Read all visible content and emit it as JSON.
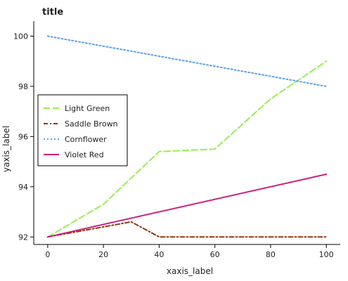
{
  "chart_data": {
    "type": "line",
    "title": "title",
    "xlabel": "xaxis_label",
    "ylabel": "yaxis_label",
    "xlim": [
      -5,
      105
    ],
    "ylim": [
      91.7,
      100.6
    ],
    "x_ticks": [
      0,
      20,
      40,
      60,
      80,
      100
    ],
    "y_ticks": [
      92,
      94,
      96,
      98,
      100
    ],
    "grid": false,
    "legend_position": "center-left",
    "series": [
      {
        "name": "Light Green",
        "color": "#99ee55",
        "dash": "9,4",
        "x": [
          0,
          20,
          40,
          60,
          80,
          100
        ],
        "y": [
          92.0,
          93.3,
          95.4,
          95.5,
          97.5,
          99.0
        ]
      },
      {
        "name": "Saddle Brown",
        "color": "#8b3a10",
        "dash": "6,3,2,3",
        "x": [
          0,
          20,
          30,
          40,
          60,
          80,
          100
        ],
        "y": [
          92.0,
          92.4,
          92.6,
          92.0,
          92.0,
          92.0,
          92.0
        ]
      },
      {
        "name": "Cornflower",
        "color": "#5aa0ee",
        "dash": "2,3",
        "x": [
          0,
          100
        ],
        "y": [
          100.0,
          98.0
        ]
      },
      {
        "name": "Violet Red",
        "color": "#cc1f7c",
        "dash": "",
        "x": [
          0,
          100
        ],
        "y": [
          92.0,
          94.5
        ]
      }
    ]
  }
}
